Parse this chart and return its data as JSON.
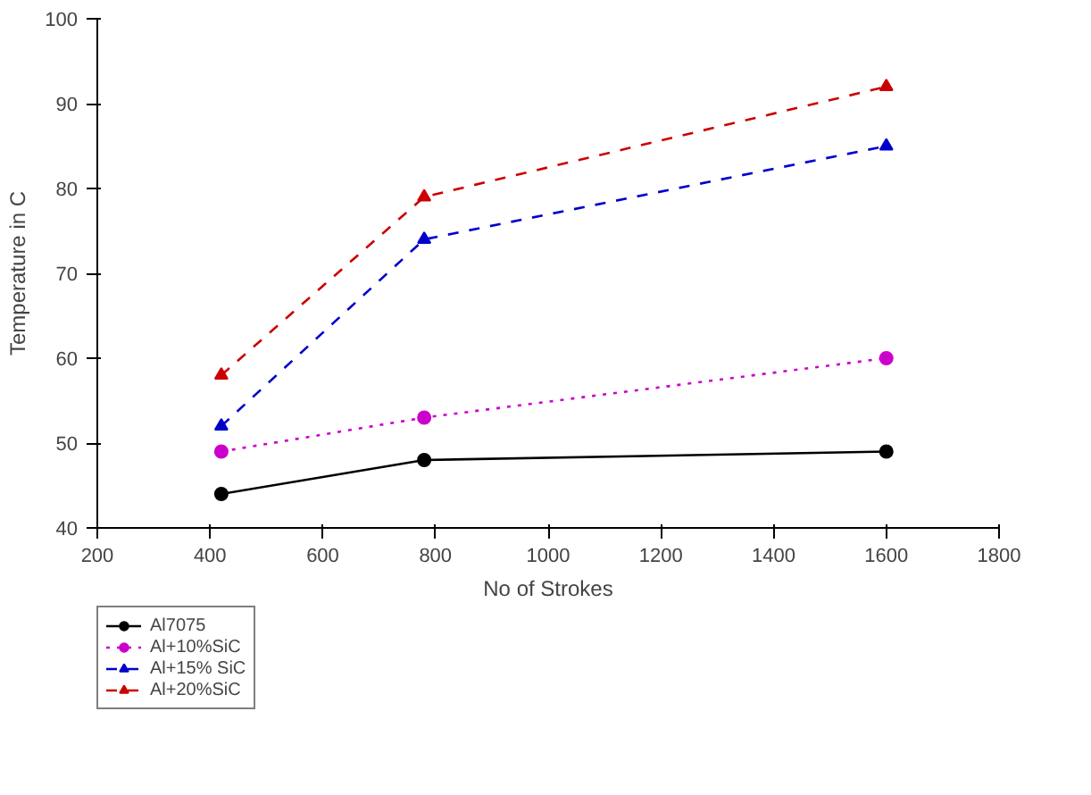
{
  "chart_data": {
    "type": "line",
    "xlabel": "No of Strokes",
    "ylabel": "Temperature in C",
    "x": [
      420,
      780,
      1600
    ],
    "series": [
      {
        "name": "Al7075",
        "color": "#000000",
        "values": [
          44,
          48,
          49
        ],
        "marker": "circle",
        "line_style": "solid"
      },
      {
        "name": "Al+10%SiC",
        "color": "#cc00cc",
        "values": [
          49,
          53,
          60
        ],
        "marker": "circle",
        "line_style": "dotted"
      },
      {
        "name": "Al+15% SiC",
        "color": "#0000cc",
        "values": [
          52,
          74,
          85
        ],
        "marker": "triangle",
        "line_style": "dashed"
      },
      {
        "name": "Al+20%SiC",
        "color": "#cc0000",
        "values": [
          58,
          79,
          92
        ],
        "marker": "triangle",
        "line_style": "dashed"
      }
    ],
    "xlim": [
      200,
      1800
    ],
    "xticks": [
      200,
      400,
      600,
      800,
      1000,
      1200,
      1400,
      1600,
      1800
    ],
    "ylim": [
      40,
      100
    ],
    "yticks": [
      40,
      50,
      60,
      70,
      80,
      90,
      100
    ],
    "grid": false,
    "legend": "bottom left"
  }
}
